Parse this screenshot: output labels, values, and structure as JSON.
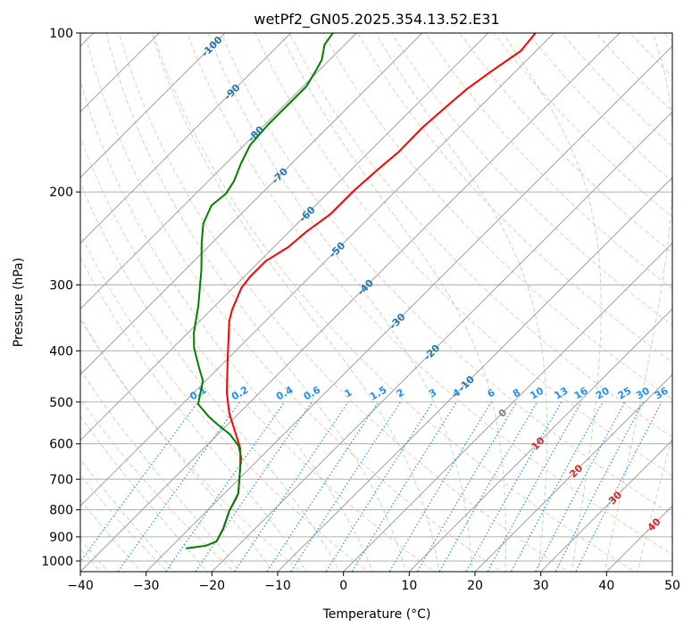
{
  "chart_data": {
    "type": "line",
    "title": "wetPf2_GN05.2025.354.13.52.E31",
    "xlabel": "Temperature (°C)",
    "ylabel": "Pressure (hPa)",
    "xlim": [
      -40,
      50
    ],
    "ylim": [
      1050,
      100
    ],
    "yscale": "log",
    "skew_deg": 45,
    "grid": true,
    "xticks": [
      -40,
      -30,
      -20,
      -10,
      0,
      10,
      20,
      30,
      40,
      50
    ],
    "yticks": [
      100,
      200,
      300,
      400,
      500,
      600,
      700,
      800,
      900,
      1000
    ],
    "series": [
      {
        "name": "Temperature",
        "color": "#ff0000",
        "p": [
          918.4,
          869.5,
          803.9,
          764.5,
          744.7,
          662.3,
          612.8,
          560.2,
          524.8,
          479.7,
          421.7,
          351.4,
          334.2,
          304.1,
          289.0,
          270.5,
          254.3,
          238.2,
          220.3,
          198.3,
          181.3,
          167.8,
          151.1,
          136.5,
          127.8,
          118.3,
          108.1,
          100
        ],
        "T": [
          -23.9,
          -24.8,
          -26.6,
          -27.4,
          -27.9,
          -31.7,
          -34.4,
          -38.5,
          -41.5,
          -45.0,
          -49.4,
          -55.5,
          -56.8,
          -58.7,
          -59.1,
          -59.1,
          -57.8,
          -57.4,
          -56.4,
          -56.4,
          -56.0,
          -55.5,
          -55.6,
          -55.1,
          -54.7,
          -53.7,
          -52.3,
          -52.8
        ]
      },
      {
        "name": "Dewpoint",
        "color": "#008000",
        "p": [
          946.6,
          935.6,
          918.4,
          869.5,
          803.9,
          744.7,
          662.3,
          637.3,
          605.3,
          575.4,
          551.7,
          531.9,
          504.5,
          456.0,
          431.5,
          394.6,
          369.8,
          328.9,
          281.3,
          248.3,
          229.5,
          212.2,
          201.4,
          190.6,
          176.8,
          163.2,
          149.3,
          136.5,
          126.3,
          118.3,
          112.4,
          105.2,
          100
        ],
        "T": [
          -27.5,
          -24.9,
          -23.9,
          -24.8,
          -26.6,
          -27.9,
          -31.7,
          -32.9,
          -35.1,
          -38.2,
          -41.5,
          -44.2,
          -47.6,
          -50.4,
          -52.9,
          -56.8,
          -59.1,
          -62.5,
          -67.5,
          -71.8,
          -74.3,
          -75.8,
          -75.4,
          -76.1,
          -77.7,
          -79.1,
          -79.5,
          -79.5,
          -79.5,
          -80.4,
          -81.2,
          -83.1,
          -83.6
        ]
      }
    ],
    "isotherm_labels": [
      "-100",
      "-90",
      "-80",
      "-70",
      "-60",
      "-50",
      "-40",
      "-30",
      "-20",
      "-10",
      "0",
      "10",
      "20",
      "30",
      "40"
    ],
    "isotherm_label_colors": {
      "negative": "#1f77b4",
      "zero": "#808080",
      "positive": "#d62728"
    },
    "mixing_ratio_labels": [
      "0.1",
      "0.2",
      "0.4",
      "0.6",
      "1",
      "1.5",
      "2",
      "3",
      "4",
      "6",
      "8",
      "10",
      "13",
      "16",
      "20",
      "25",
      "30",
      "36"
    ],
    "mixing_ratio_color": "#1e90ff",
    "dry_adiabat_color": "#f4a582",
    "moist_adiabat_color": "#8fc98f",
    "isotherm_color": "#a0a0a0"
  }
}
